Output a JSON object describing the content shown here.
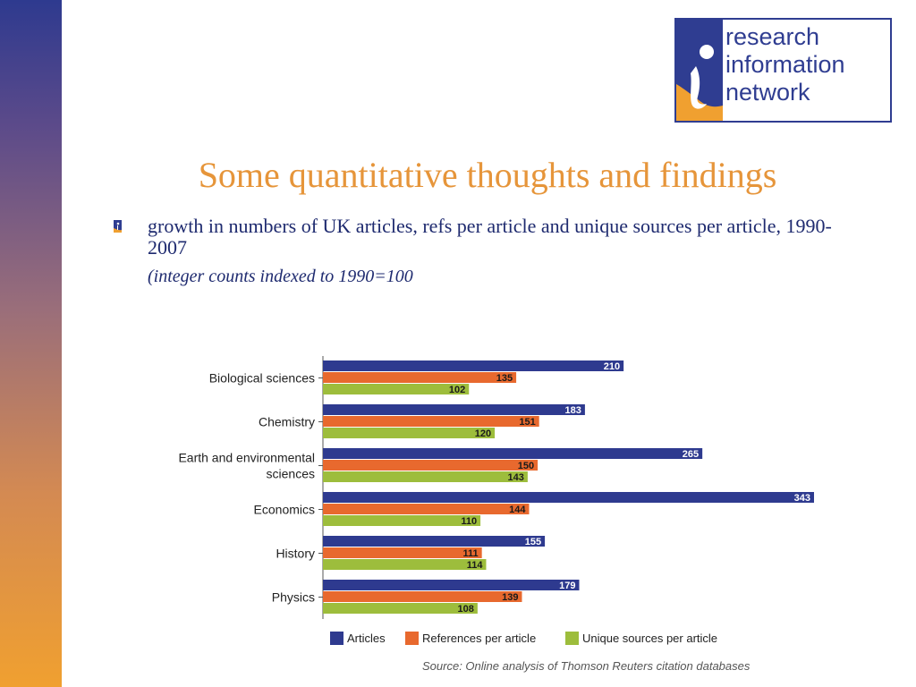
{
  "logo": {
    "lines": [
      "research",
      "information",
      "network"
    ],
    "colors": {
      "border": "#2f3d91",
      "mark_blue": "#2f3d91",
      "mark_orange": "#f0a030"
    }
  },
  "slide": {
    "title": "Some quantitative thoughts and findings",
    "bullet": "growth in numbers of UK articles, refs per article and unique sources per article, 1990-2007",
    "note": "(integer counts indexed to 1990=100",
    "source": "Source: Online analysis of Thomson Reuters citation databases"
  },
  "colors": {
    "title": "#e6953a",
    "text": "#1e2a6f"
  },
  "chart_data": {
    "type": "bar",
    "orientation": "horizontal",
    "categories": [
      [
        "Biological sciences"
      ],
      [
        "Chemistry"
      ],
      [
        "Earth and environmental",
        "sciences"
      ],
      [
        "Economics"
      ],
      [
        "History"
      ],
      [
        "Physics"
      ]
    ],
    "series": [
      {
        "name": "Articles",
        "color": "#2e3a8f",
        "values": [
          210,
          183,
          265,
          343,
          155,
          179
        ]
      },
      {
        "name": "References per article",
        "color": "#e8692e",
        "values": [
          135,
          151,
          150,
          144,
          111,
          139
        ]
      },
      {
        "name": "Unique sources per article",
        "color": "#9dbd3c",
        "values": [
          102,
          120,
          143,
          110,
          114,
          108
        ]
      }
    ],
    "xlim": [
      0,
      343
    ],
    "grid": false,
    "legend": "bottom"
  }
}
